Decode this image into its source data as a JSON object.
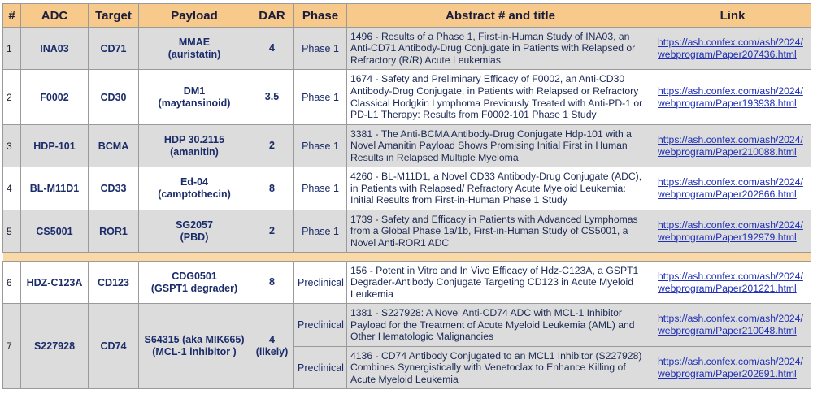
{
  "headers": [
    "#",
    "ADC",
    "Target",
    "Payload",
    "DAR",
    "Phase",
    "Abstract # and title",
    "Link"
  ],
  "rows": [
    {
      "num": "1",
      "adc": "INA03",
      "target": "CD71",
      "payload_name": "MMAE",
      "payload_class": "(auristatin)",
      "dar": "4",
      "dar_note": "",
      "phase": "Phase 1",
      "abstract": "1496 - Results of a Phase 1, First-in-Human Study of INA03, an Anti-CD71 Antibody-Drug Conjugate in Patients with Relapsed or Refractory (R/R) Acute Leukemias",
      "link_1": "https://ash.confex.com/ash/2024/",
      "link_2": "webprogram/Paper207436.html"
    },
    {
      "num": "2",
      "adc": "F0002",
      "target": "CD30",
      "payload_name": "DM1",
      "payload_class": "(maytansinoid)",
      "dar": "3.5",
      "dar_note": "",
      "phase": "Phase 1",
      "abstract": "1674 - Safety and Preliminary Efficacy of F0002, an Anti-CD30 Antibody-Drug Conjugate, in Patients with Relapsed or Refractory Classical Hodgkin Lymphoma Previously Treated with Anti-PD-1 or PD-L1 Therapy: Results from F0002-101 Phase 1 Study",
      "link_1": "https://ash.confex.com/ash/2024/",
      "link_2": "webprogram/Paper193938.html"
    },
    {
      "num": "3",
      "adc": "HDP-101",
      "target": "BCMA",
      "payload_name": "HDP 30.2115",
      "payload_class": "(amanitin)",
      "dar": "2",
      "dar_note": "",
      "phase": "Phase 1",
      "abstract": "3381 - The Anti-BCMA Antibody-Drug Conjugate Hdp-101 with a Novel Amanitin Payload Shows Promising Initial First in Human Results in Relapsed Multiple Myeloma",
      "link_1": "https://ash.confex.com/ash/2024/",
      "link_2": "webprogram/Paper210088.html"
    },
    {
      "num": "4",
      "adc": "BL-M11D1",
      "target": "CD33",
      "payload_name": "Ed-04",
      "payload_class": "(camptothecin)",
      "dar": "8",
      "dar_note": "",
      "phase": "Phase 1",
      "abstract": "4260 - BL-M11D1, a Novel CD33 Antibody-Drug Conjugate (ADC), in Patients with Relapsed/ Refractory Acute Myeloid Leukemia: Initial Results from First-in-Human Phase 1 Study",
      "link_1": "https://ash.confex.com/ash/2024/",
      "link_2": "webprogram/Paper202866.html"
    },
    {
      "num": "5",
      "adc": "CS5001",
      "target": "ROR1",
      "payload_name": "SG2057",
      "payload_class": "(PBD)",
      "dar": "2",
      "dar_note": "",
      "phase": "Phase 1",
      "abstract": "1739 - Safety and Efficacy in Patients with Advanced Lymphomas from a Global Phase 1a/1b, First-in-Human Study of CS5001, a Novel Anti-ROR1 ADC",
      "link_1": "https://ash.confex.com/ash/2024/",
      "link_2": "webprogram/Paper192979.html"
    },
    {
      "num": "6",
      "adc": "HDZ-C123A",
      "target": "CD123",
      "payload_name": "CDG0501",
      "payload_class": "(GSPT1 degrader)",
      "dar": "8",
      "dar_note": "",
      "phase": "Preclinical",
      "abstract": "156 - Potent in Vitro and In Vivo Efficacy of Hdz-C123A, a GSPT1 Degrader-Antibody Conjugate Targeting CD123 in Acute Myeloid Leukemia",
      "link_1": "https://ash.confex.com/ash/2024/",
      "link_2": "webprogram/Paper201221.html"
    },
    {
      "num": "7",
      "adc": "S227928",
      "target": "CD74",
      "payload_name": "S64315 (aka MIK665)",
      "payload_class": "(MCL-1 inhibitor )",
      "dar": "4",
      "dar_note": "(likely)",
      "phase": "Preclinical",
      "abstract": "1381 - S227928: A Novel Anti-CD74 ADC with MCL-1 Inhibitor Payload for the Treatment of Acute Myeloid Leukemia (AML) and Other Hematologic Malignancies",
      "link_1": "https://ash.confex.com/ash/2024/",
      "link_2": "webprogram/Paper210048.html",
      "phase_b": "Preclinical",
      "abstract_b": "4136 - CD74 Antibody Conjugated to an MCL1 Inhibitor (S227928) Combines Synergistically with Venetoclax to Enhance Killing of Acute Myeloid Leukemia",
      "link_b_1": "https://ash.confex.com/ash/2024/",
      "link_b_2": "webprogram/Paper202691.html"
    }
  ],
  "colors": {
    "header_bg": "#f7c98a",
    "separator_bg": "#fbd9a6",
    "row_shade": "#dcdcdc",
    "text_navy": "#1b2c6a",
    "link_blue": "#1f2fb8"
  }
}
